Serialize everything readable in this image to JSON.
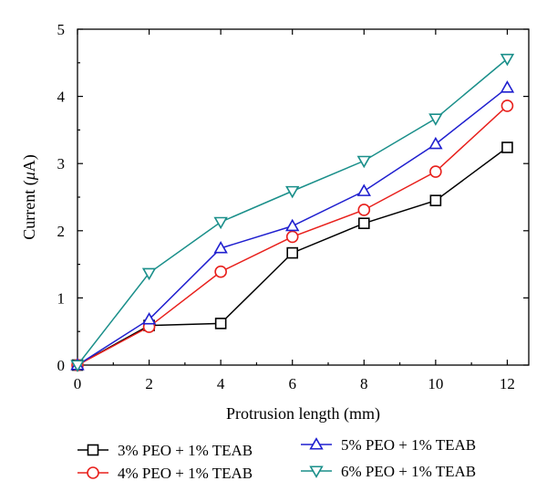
{
  "chart_data": {
    "type": "line",
    "title": "",
    "xlabel": "Protrusion length (mm)",
    "ylabel_prefix": "Current (",
    "ylabel_unit_symbol": "μ",
    "ylabel_suffix": "A)",
    "xlim": [
      0,
      12.6
    ],
    "ylim": [
      0,
      5
    ],
    "x_ticks": [
      0,
      2,
      4,
      6,
      8,
      10,
      12
    ],
    "y_ticks": [
      0,
      1,
      2,
      3,
      4,
      5
    ],
    "grid": false,
    "legend_position": "below",
    "x": [
      0,
      2,
      4,
      6,
      8,
      10,
      12
    ],
    "series": [
      {
        "name": "3% PEO + 1% TEAB",
        "marker": "square",
        "color": "#000000",
        "values": [
          0,
          0.59,
          0.62,
          1.67,
          2.11,
          2.45,
          3.24
        ]
      },
      {
        "name": "4% PEO + 1% TEAB",
        "marker": "circle",
        "color": "#e8201c",
        "values": [
          0,
          0.57,
          1.39,
          1.91,
          2.31,
          2.88,
          3.86
        ]
      },
      {
        "name": "5% PEO + 1% TEAB",
        "marker": "triangle-up",
        "color": "#1f1fcf",
        "values": [
          0,
          0.68,
          1.74,
          2.07,
          2.59,
          3.29,
          4.13
        ]
      },
      {
        "name": "6% PEO + 1% TEAB",
        "marker": "triangle-down",
        "color": "#1a8f8a",
        "values": [
          0,
          1.37,
          2.13,
          2.59,
          3.04,
          3.67,
          4.56
        ]
      }
    ]
  }
}
